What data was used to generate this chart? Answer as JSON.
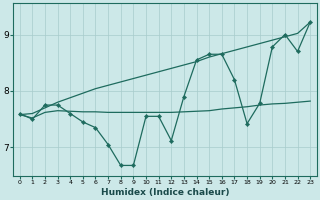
{
  "xlabel": "Humidex (Indice chaleur)",
  "background_color": "#cce8e8",
  "grid_color": "#a8cccc",
  "line_color": "#1e6b5e",
  "x_values": [
    0,
    1,
    2,
    3,
    4,
    5,
    6,
    7,
    8,
    9,
    10,
    11,
    12,
    13,
    14,
    15,
    16,
    17,
    18,
    19,
    20,
    21,
    22,
    23
  ],
  "line_main": [
    7.6,
    7.5,
    7.75,
    7.75,
    7.6,
    7.45,
    7.35,
    7.05,
    6.68,
    6.68,
    7.55,
    7.55,
    7.12,
    7.9,
    8.55,
    8.65,
    8.65,
    8.2,
    7.42,
    7.78,
    8.78,
    9.0,
    8.7,
    9.22
  ],
  "line_lower": [
    7.58,
    7.52,
    7.62,
    7.65,
    7.64,
    7.63,
    7.63,
    7.62,
    7.62,
    7.62,
    7.62,
    7.62,
    7.62,
    7.63,
    7.64,
    7.65,
    7.68,
    7.7,
    7.72,
    7.75,
    7.77,
    7.78,
    7.8,
    7.82
  ],
  "line_upper": [
    7.58,
    7.6,
    7.7,
    7.8,
    7.88,
    7.96,
    8.04,
    8.1,
    8.16,
    8.22,
    8.28,
    8.34,
    8.4,
    8.46,
    8.52,
    8.6,
    8.66,
    8.72,
    8.78,
    8.84,
    8.9,
    8.96,
    9.02,
    9.22
  ],
  "ylim": [
    6.5,
    9.55
  ],
  "xlim": [
    -0.5,
    23.5
  ],
  "yticks": [
    7,
    8,
    9
  ],
  "xticks": [
    0,
    1,
    2,
    3,
    4,
    5,
    6,
    7,
    8,
    9,
    10,
    11,
    12,
    13,
    14,
    15,
    16,
    17,
    18,
    19,
    20,
    21,
    22,
    23
  ]
}
